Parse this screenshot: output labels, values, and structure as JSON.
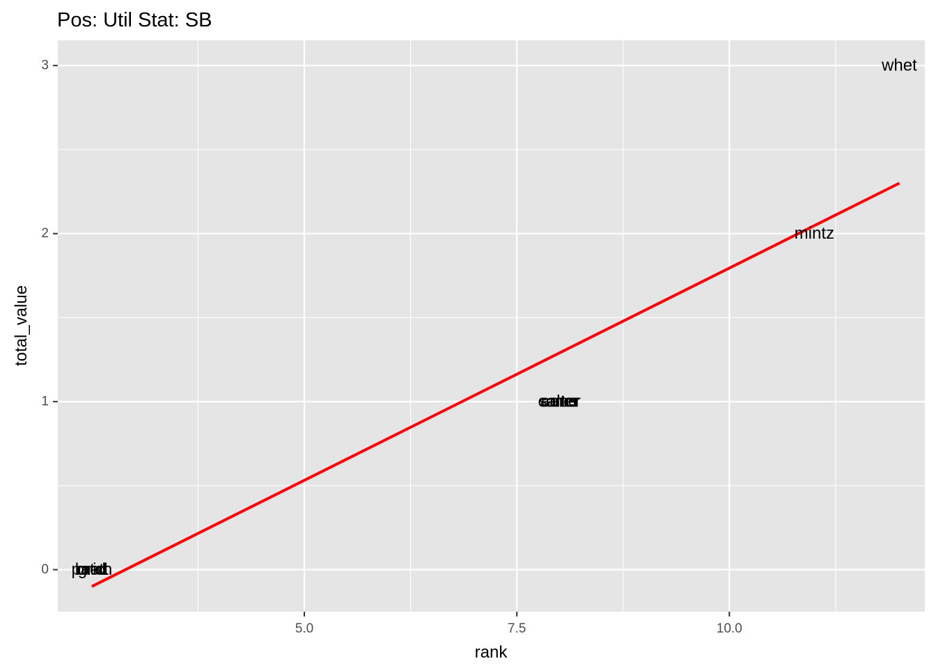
{
  "chart_data": {
    "type": "scatter",
    "title": "Pos: Util Stat: SB",
    "xlabel": "rank",
    "ylabel": "total_value",
    "xlim": [
      2.1,
      12.3
    ],
    "ylim": [
      -0.25,
      3.15
    ],
    "x_ticks": [
      5.0,
      7.5,
      10.0
    ],
    "x_tick_labels": [
      "5.0",
      "7.5",
      "10.0"
    ],
    "y_ticks": [
      0,
      1,
      2,
      3
    ],
    "y_tick_labels": [
      "0",
      "1",
      "2",
      "3"
    ],
    "grid": true,
    "background": "#e5e5e5",
    "points": [
      {
        "label": "brett",
        "x": 2.5,
        "y": 0
      },
      {
        "label": "patch",
        "x": 2.5,
        "y": 0
      },
      {
        "label": "grid",
        "x": 2.5,
        "y": 0
      },
      {
        "label": "mcd",
        "x": 2.5,
        "y": 0
      },
      {
        "label": "carter",
        "x": 8.0,
        "y": 1
      },
      {
        "label": "salter",
        "x": 8.0,
        "y": 1
      },
      {
        "label": "cano",
        "x": 8.0,
        "y": 1
      },
      {
        "label": "amer",
        "x": 8.0,
        "y": 1
      },
      {
        "label": "mintz",
        "x": 11.0,
        "y": 2
      },
      {
        "label": "whet",
        "x": 12.0,
        "y": 3
      }
    ],
    "trend_line": {
      "color": "#ff0000",
      "x": [
        2.5,
        12.0
      ],
      "y": [
        -0.1,
        2.3
      ]
    }
  }
}
